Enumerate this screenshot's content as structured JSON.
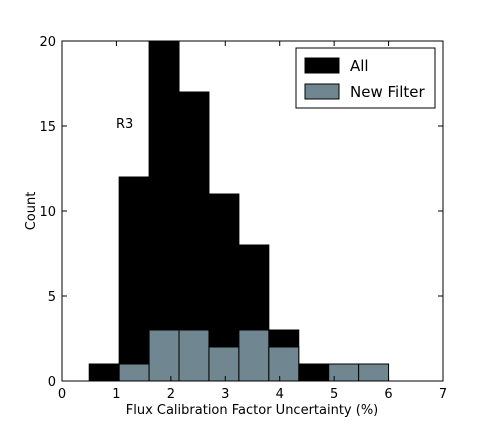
{
  "chart_data": {
    "type": "bar",
    "xlabel": "Flux Calibration Factor Uncertainty (%)",
    "ylabel": "Count",
    "annotation": "R3",
    "xlim": [
      0,
      7
    ],
    "ylim": [
      0,
      20
    ],
    "xticks": [
      "0",
      "1",
      "2",
      "3",
      "4",
      "5",
      "6",
      "7"
    ],
    "yticks": [
      "0",
      "5",
      "10",
      "15",
      "20"
    ],
    "legend_position": "top-right",
    "bin_edges": [
      0.5,
      1.05,
      1.6,
      2.15,
      2.7,
      3.25,
      3.8,
      4.35,
      4.9,
      5.45,
      6.0
    ],
    "series": [
      {
        "name": "All",
        "color": "#000000",
        "values": [
          1,
          12,
          20,
          17,
          11,
          8,
          3,
          1,
          0,
          0
        ]
      },
      {
        "name": "New Filter",
        "color": "#708690",
        "values": [
          0,
          1,
          3,
          3,
          2,
          3,
          2,
          0,
          1,
          1
        ]
      }
    ]
  }
}
